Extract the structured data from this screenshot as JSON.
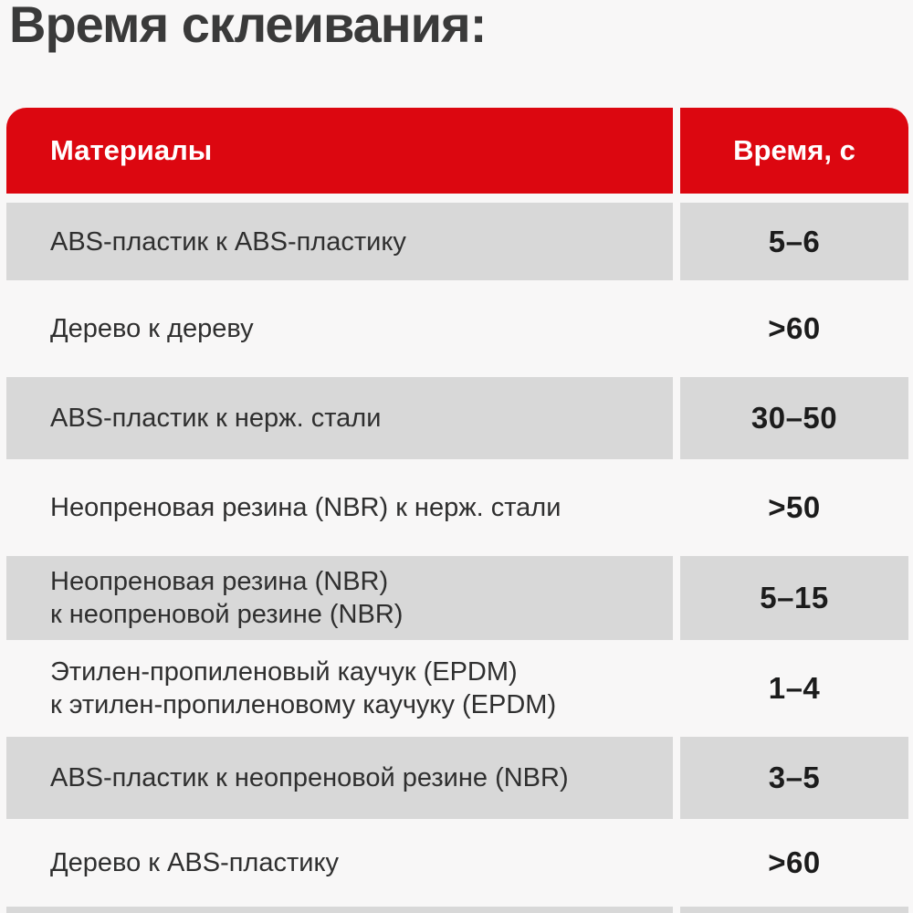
{
  "title": "Время склеивания:",
  "colors": {
    "accent_red": "#dc0710",
    "row_gray": "#d8d8d8",
    "page_background": "#f8f7f7",
    "header_text": "#ffffff",
    "body_text": "#2f2f2f"
  },
  "chart_data": {
    "type": "table",
    "title": "Время склеивания:",
    "columns": [
      "Материалы",
      "Время, с"
    ],
    "rows": [
      {
        "material": "ABS-пластик к ABS-пластику",
        "time": "5–6"
      },
      {
        "material": "Дерево к дереву",
        "time": ">60"
      },
      {
        "material": "ABS-пластик к нерж. стали",
        "time": "30–50"
      },
      {
        "material": "Неопреновая резина (NBR) к нерж. стали",
        "time": ">50"
      },
      {
        "material": "Неопреновая резина (NBR)\nк неопреновой резине (NBR)",
        "time": "5–15"
      },
      {
        "material": "Этилен-пропиленовый каучук (EPDM)\nк этилен-пропиленовому каучуку (EPDM)",
        "time": "1–4"
      },
      {
        "material": "ABS-пластик к неопреновой резине (NBR)",
        "time": "3–5"
      },
      {
        "material": "Дерево к ABS-пластику",
        "time": ">60"
      }
    ]
  }
}
